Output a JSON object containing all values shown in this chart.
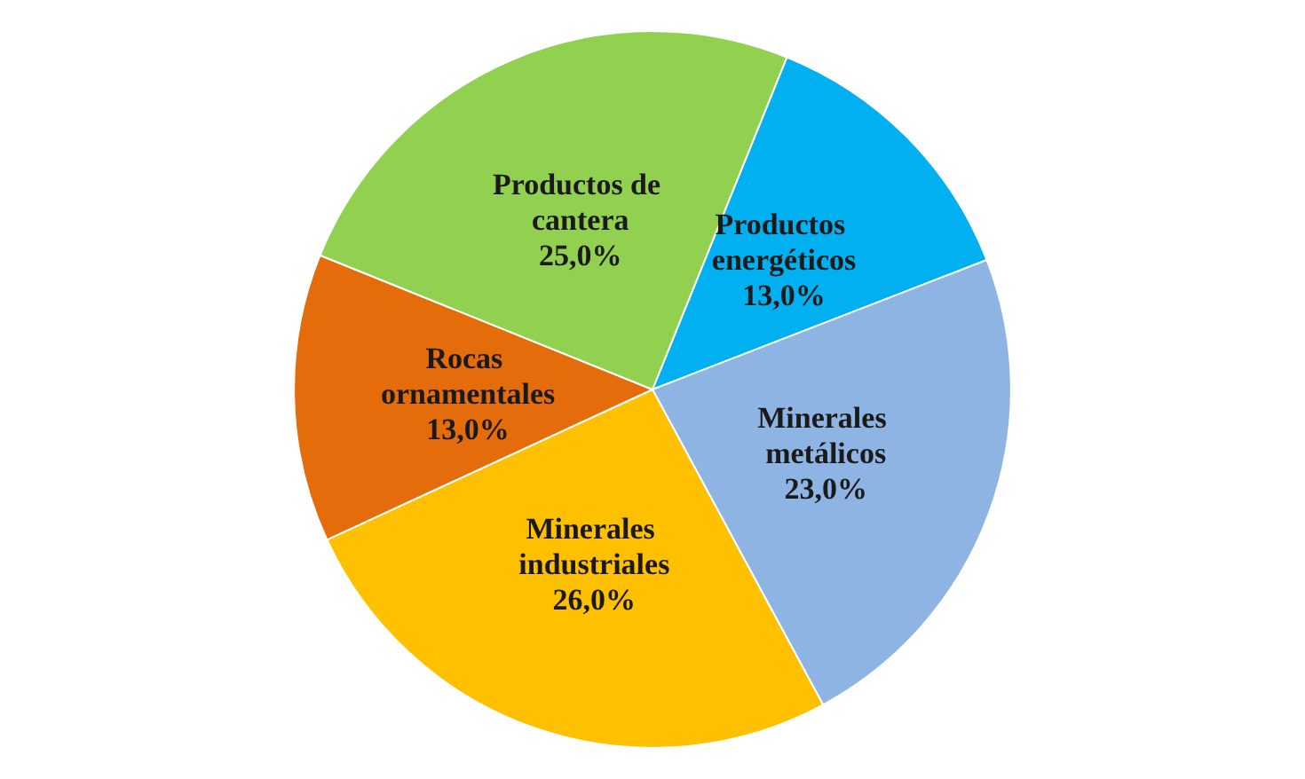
{
  "chart_data": {
    "type": "pie",
    "categories": [
      "Productos energéticos",
      "Minerales metálicos",
      "Minerales industriales",
      "Rocas ornamentales",
      "Productos de cantera"
    ],
    "values": [
      13,
      23,
      26,
      13,
      25
    ],
    "value_labels": [
      "13,0%",
      "23,0%",
      "26,0%",
      "13,0%",
      "25,0%"
    ],
    "colors": [
      "#00b0f0",
      "#8eb4e3",
      "#ffc000",
      "#e46c0a",
      "#92d050"
    ]
  }
}
